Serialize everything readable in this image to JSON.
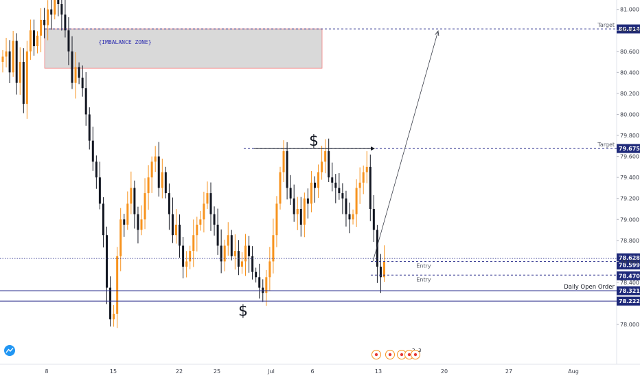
{
  "chart_data": {
    "type": "candlestick",
    "y_range": [
      77.85,
      81.05
    ],
    "y_ticks": [
      "81.000",
      "80.800",
      "80.600",
      "80.400",
      "80.200",
      "80.000",
      "79.800",
      "79.600",
      "79.400",
      "79.200",
      "79.000",
      "78.800",
      "78.600",
      "78.400",
      "78.000"
    ],
    "y_tick_values": [
      81.0,
      80.8,
      80.6,
      80.4,
      80.2,
      80.0,
      79.8,
      79.6,
      79.4,
      79.2,
      79.0,
      78.8,
      78.6,
      78.4,
      78.0
    ],
    "x_ticks": [
      "8",
      "15",
      "22",
      "25",
      "Jul",
      "6",
      "13",
      "20",
      "27",
      "Aug"
    ],
    "colors": {
      "bull": "#f7931e",
      "bear": "#131722",
      "level_line": "#2a2e8c",
      "badge": "#1f2a7a",
      "zone_fill": "#d9d9d9",
      "zone_border": "#f08080",
      "zone_text": "#2b2bb0",
      "entry_text": "#1b8a5a",
      "event_icon": "#f7931e",
      "logo": "#2196f3"
    },
    "candles_close": [
      80.55,
      80.6,
      80.4,
      80.7,
      80.3,
      80.5,
      80.1,
      80.6,
      80.8,
      80.65,
      80.75,
      80.9,
      80.85,
      81.0,
      80.95,
      81.1,
      81.05,
      80.95,
      80.8,
      80.6,
      80.3,
      80.45,
      80.35,
      80.25,
      80.0,
      79.75,
      79.55,
      79.4,
      79.15,
      78.85,
      78.35,
      78.05,
      78.1,
      78.65,
      79.0,
      78.95,
      79.15,
      79.3,
      79.05,
      78.9,
      79.0,
      79.25,
      79.4,
      79.55,
      79.6,
      79.3,
      79.45,
      79.25,
      79.05,
      78.85,
      78.95,
      78.75,
      78.55,
      78.6,
      78.7,
      78.85,
      78.95,
      79.0,
      79.15,
      79.25,
      79.05,
      78.95,
      78.75,
      78.6,
      78.75,
      78.85,
      78.65,
      78.7,
      78.55,
      78.6,
      78.75,
      78.65,
      78.5,
      78.45,
      78.35,
      78.3,
      78.45,
      78.6,
      78.85,
      79.15,
      79.45,
      79.65,
      79.3,
      79.2,
      79.05,
      79.1,
      78.95,
      79.2,
      79.15,
      79.35,
      79.3,
      79.45,
      79.55,
      79.65,
      79.4,
      79.35,
      79.3,
      79.25,
      79.2,
      79.05,
      79.0,
      79.05,
      79.3,
      79.35,
      79.45,
      79.5,
      79.1,
      78.9,
      78.55,
      78.45,
      78.6
    ],
    "levels": [
      {
        "value": 80.814,
        "badge": "80.814",
        "note": "Target"
      },
      {
        "value": 79.675,
        "badge": "79.675",
        "note": "Target"
      },
      {
        "value": 78.628,
        "badge": "78.628",
        "note": ""
      },
      {
        "value": 78.599,
        "badge": "78.599",
        "note": "Entry"
      },
      {
        "value": 78.47,
        "badge": "78.470",
        "note": "Entry"
      },
      {
        "value": 78.321,
        "badge": "78.321",
        "note": "Daily Open Order"
      },
      {
        "value": 78.222,
        "badge": "78.222",
        "note": ""
      }
    ],
    "zone": {
      "label": "{IMBALANCE ZONE}",
      "top": 80.814,
      "bottom": 80.44
    },
    "liquidity_high": {
      "label": "$",
      "value": 79.675
    },
    "liquidity_low": {
      "label": "$",
      "value": 78.12
    },
    "projection": {
      "from": 78.6,
      "to": 80.814
    },
    "events": [
      "",
      "",
      "",
      "2",
      "3"
    ]
  }
}
